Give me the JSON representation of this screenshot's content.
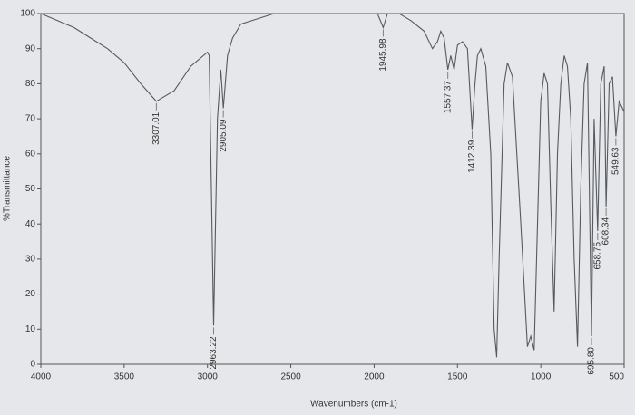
{
  "chart_data": {
    "type": "line",
    "y_label": "%Transmittance",
    "x_label": "Wavenumbers (cm-1)",
    "xlim": [
      4000,
      500
    ],
    "ylim": [
      0,
      100
    ],
    "xticks": [
      4000,
      3500,
      3000,
      2500,
      2000,
      1500,
      1000,
      500
    ],
    "yticks": [
      0,
      10,
      20,
      30,
      40,
      50,
      60,
      70,
      80,
      90,
      100
    ],
    "color": "#555a60",
    "x": [
      4000,
      3900,
      3800,
      3700,
      3600,
      3500,
      3400,
      3307.01,
      3200,
      3100,
      3000,
      2990,
      2963.22,
      2940,
      2920,
      2905.09,
      2880,
      2850,
      2800,
      2600,
      2400,
      2200,
      2100,
      1980,
      1945.98,
      1920,
      1850,
      1780,
      1700,
      1650,
      1620,
      1600,
      1580,
      1557.37,
      1540,
      1520,
      1500,
      1470,
      1440,
      1412.39,
      1395,
      1380,
      1360,
      1330,
      1300,
      1280,
      1265,
      1250,
      1220,
      1200,
      1170,
      1120,
      1080,
      1060,
      1040,
      1020,
      1000,
      980,
      960,
      940,
      920,
      900,
      880,
      860,
      840,
      820,
      800,
      780,
      760,
      740,
      720,
      695.8,
      680,
      658.75,
      640,
      620,
      608.34,
      590,
      570,
      549.63,
      530,
      500
    ],
    "values": [
      100,
      98,
      96,
      93,
      90,
      86,
      80,
      75,
      78,
      85,
      89,
      88,
      11,
      70,
      84,
      73,
      88,
      93,
      97,
      100,
      100,
      100,
      100,
      100,
      96,
      100,
      100,
      98,
      95,
      90,
      92,
      95,
      93,
      84,
      88,
      84,
      91,
      92,
      90,
      67,
      80,
      88,
      90,
      85,
      60,
      10,
      2,
      30,
      80,
      86,
      82,
      40,
      5,
      8,
      4,
      40,
      75,
      83,
      80,
      45,
      15,
      60,
      80,
      88,
      85,
      70,
      30,
      5,
      50,
      80,
      86,
      8,
      70,
      38,
      80,
      85,
      45,
      80,
      82,
      65,
      75,
      72
    ],
    "peaks": [
      3307.01,
      2963.22,
      2905.09,
      1945.98,
      1557.37,
      1412.39,
      {
        "value": 695.8,
        "label": "695.80"
      },
      658.75,
      608.34,
      549.63
    ]
  }
}
